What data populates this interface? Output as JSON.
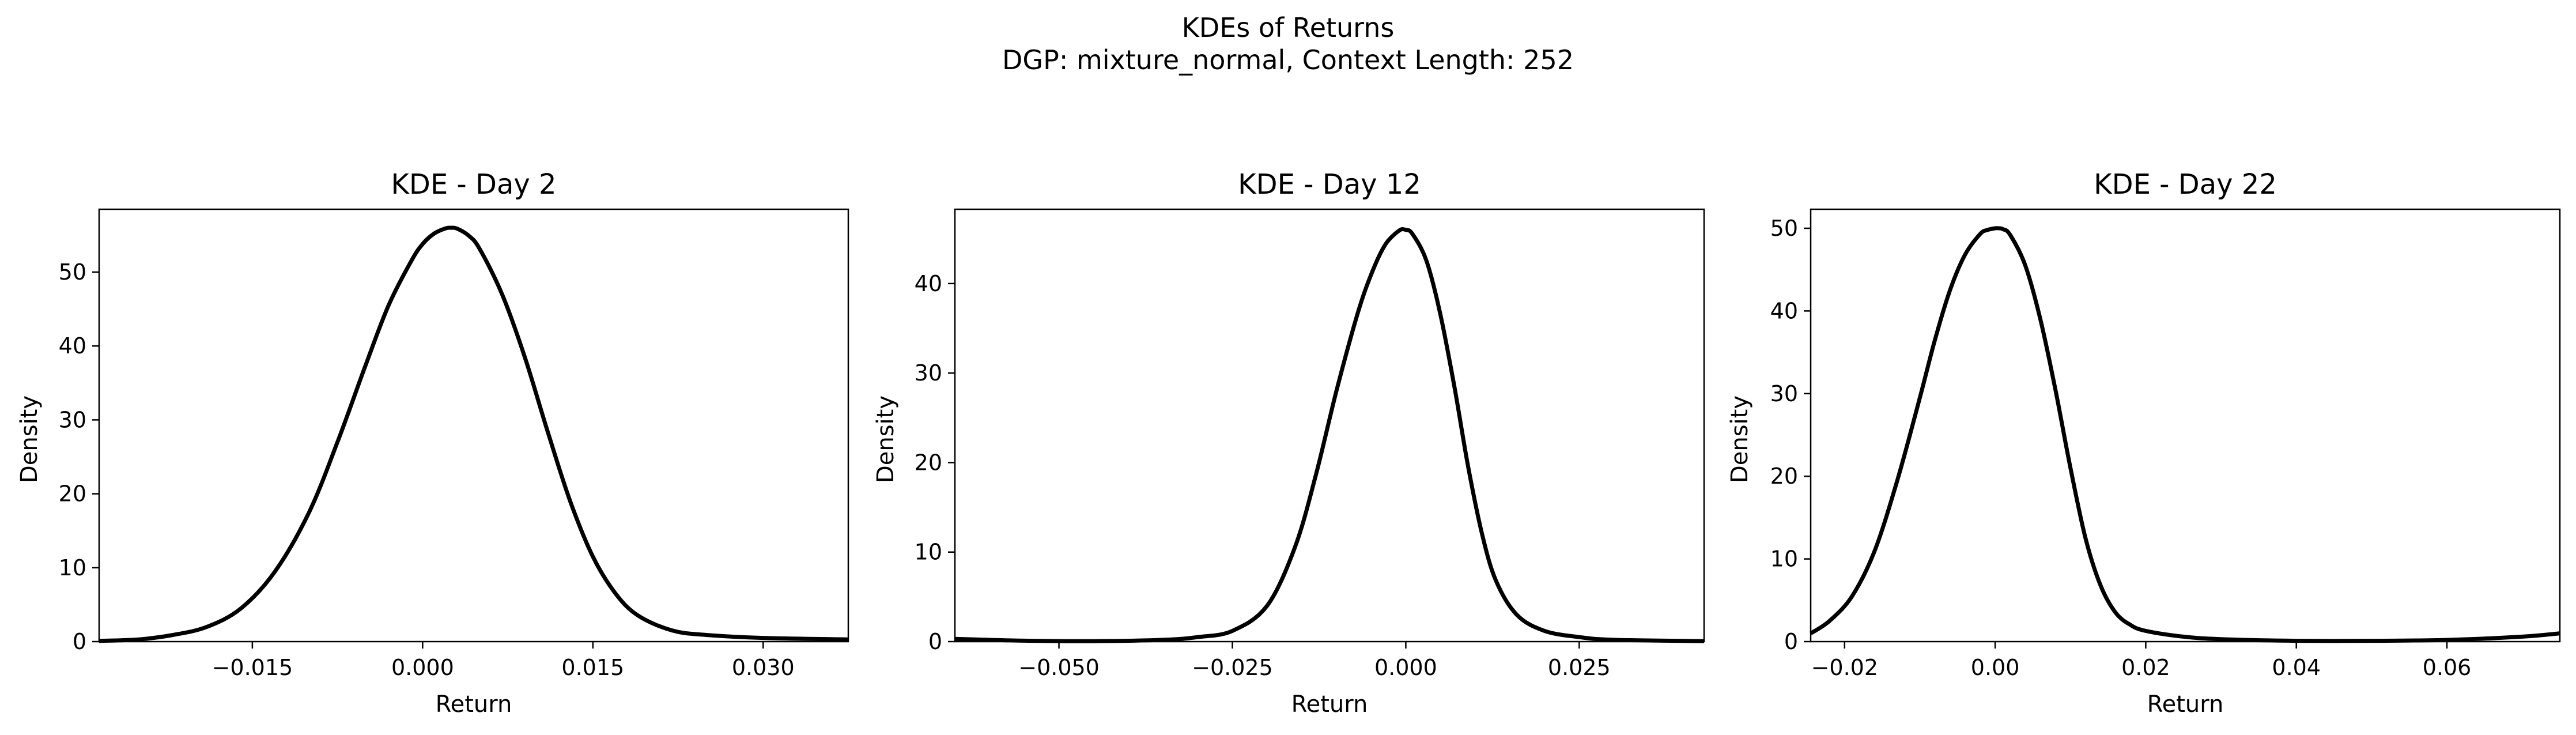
{
  "figure": {
    "title": "KDEs of Returns",
    "subtitle": "DGP: mixture_normal, Context Length: 252",
    "line_color": "#000000"
  },
  "chart_data": [
    {
      "type": "line",
      "title": "KDE - Day 2",
      "xlabel": "Return",
      "ylabel": "Density",
      "xlim": [
        -0.0285,
        0.0375
      ],
      "ylim": [
        0,
        58.5
      ],
      "xticks": [
        -0.015,
        0.0,
        0.015,
        0.03
      ],
      "xtick_labels": [
        "−0.015",
        "0.000",
        "0.015",
        "0.030"
      ],
      "yticks": [
        0,
        10,
        20,
        30,
        40,
        50
      ],
      "ytick_labels": [
        "0",
        "10",
        "20",
        "30",
        "40",
        "50"
      ],
      "grid": false,
      "series": [
        {
          "x": [
            -0.0285,
            -0.025,
            -0.022,
            -0.019,
            -0.016,
            -0.013,
            -0.01,
            -0.0075,
            -0.005,
            -0.003,
            -0.001,
            0.0,
            0.001,
            0.002,
            0.0025,
            0.003,
            0.004,
            0.005,
            0.007,
            0.009,
            0.011,
            0.013,
            0.015,
            0.017,
            0.019,
            0.022,
            0.025,
            0.03,
            0.0375
          ],
          "y": [
            0.1,
            0.3,
            0.9,
            2.0,
            4.5,
            9.5,
            17.5,
            27.0,
            37.5,
            45.5,
            51.5,
            53.8,
            55.2,
            55.9,
            56.0,
            55.9,
            55.0,
            53.2,
            47.0,
            38.5,
            28.5,
            19.0,
            11.5,
            6.5,
            3.5,
            1.5,
            0.9,
            0.5,
            0.3
          ]
        }
      ]
    },
    {
      "type": "line",
      "title": "KDE - Day 12",
      "xlabel": "Return",
      "ylabel": "Density",
      "xlim": [
        -0.065,
        0.043
      ],
      "ylim": [
        0,
        48.3
      ],
      "xticks": [
        -0.05,
        -0.025,
        0.0,
        0.025
      ],
      "xtick_labels": [
        "−0.050",
        "−0.025",
        "0.000",
        "0.025"
      ],
      "yticks": [
        0,
        10,
        20,
        30,
        40
      ],
      "ytick_labels": [
        "0",
        "10",
        "20",
        "30",
        "40"
      ],
      "grid": false,
      "series": [
        {
          "x": [
            -0.065,
            -0.055,
            -0.045,
            -0.035,
            -0.03,
            -0.025,
            -0.02,
            -0.016,
            -0.013,
            -0.01,
            -0.007,
            -0.005,
            -0.003,
            -0.001,
            0.0,
            0.001,
            0.003,
            0.005,
            0.007,
            0.009,
            0.011,
            0.013,
            0.016,
            0.02,
            0.025,
            0.03,
            0.043
          ],
          "y": [
            0.3,
            0.1,
            0.05,
            0.2,
            0.5,
            1.2,
            4.0,
            10.5,
            18.5,
            28.0,
            36.5,
            41.0,
            44.3,
            45.9,
            46.0,
            45.5,
            42.5,
            36.5,
            28.5,
            19.5,
            12.0,
            6.8,
            3.0,
            1.2,
            0.5,
            0.2,
            0.05
          ]
        }
      ]
    },
    {
      "type": "line",
      "title": "KDE - Day 22",
      "xlabel": "Return",
      "ylabel": "Density",
      "xlim": [
        -0.0245,
        0.075
      ],
      "ylim": [
        0,
        52.3
      ],
      "xticks": [
        -0.02,
        0.0,
        0.02,
        0.04,
        0.06
      ],
      "xtick_labels": [
        "−0.02",
        "0.00",
        "0.02",
        "0.04",
        "0.06"
      ],
      "yticks": [
        0,
        10,
        20,
        30,
        40,
        50
      ],
      "ytick_labels": [
        "0",
        "10",
        "20",
        "30",
        "40",
        "50"
      ],
      "grid": false,
      "series": [
        {
          "x": [
            -0.0245,
            -0.022,
            -0.019,
            -0.016,
            -0.013,
            -0.01,
            -0.008,
            -0.006,
            -0.004,
            -0.002,
            -0.001,
            0.0,
            0.0005,
            0.001,
            0.002,
            0.004,
            0.006,
            0.008,
            0.01,
            0.012,
            0.014,
            0.016,
            0.018,
            0.02,
            0.025,
            0.03,
            0.04,
            0.05,
            0.06,
            0.07,
            0.075
          ],
          "y": [
            1.0,
            2.5,
            5.5,
            11.0,
            19.5,
            29.5,
            36.5,
            42.5,
            46.8,
            49.3,
            49.8,
            50.0,
            50.0,
            49.9,
            49.2,
            45.5,
            39.0,
            30.5,
            21.0,
            12.5,
            6.8,
            3.5,
            2.0,
            1.3,
            0.6,
            0.3,
            0.1,
            0.1,
            0.2,
            0.6,
            1.0
          ]
        }
      ]
    }
  ]
}
